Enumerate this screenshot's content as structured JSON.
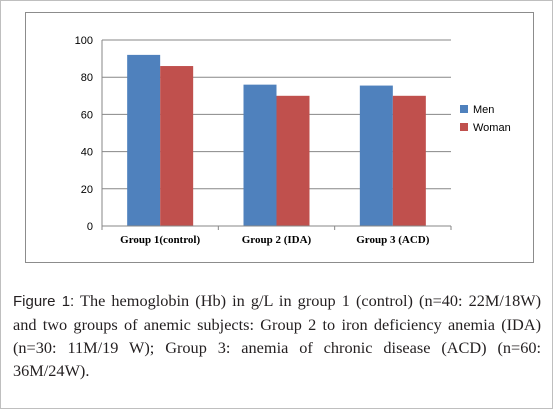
{
  "chart_data": {
    "type": "bar",
    "categories": [
      "Group 1(control)",
      "Group 2 (IDA)",
      "Group 3 (ACD)"
    ],
    "series": [
      {
        "name": "Men",
        "color": "#4f81bd",
        "values": [
          92,
          76,
          75.5
        ]
      },
      {
        "name": "Woman",
        "color": "#c0504d",
        "values": [
          86,
          70,
          70
        ]
      }
    ],
    "ylim": [
      0,
      100
    ],
    "yticks": [
      0,
      20,
      40,
      60,
      80,
      100
    ],
    "grid": true,
    "legend": "right"
  },
  "caption": {
    "label": "Figure 1:",
    "text": "The hemoglobin (Hb) in g/L in group 1 (control) (n=40: 22M/18W) and two groups of anemic subjects: Group 2 to iron deficiency anemia (IDA) (n=30: 11M/19 W); Group 3: anemia of chronic disease (ACD) (n=60: 36M/24W)."
  }
}
